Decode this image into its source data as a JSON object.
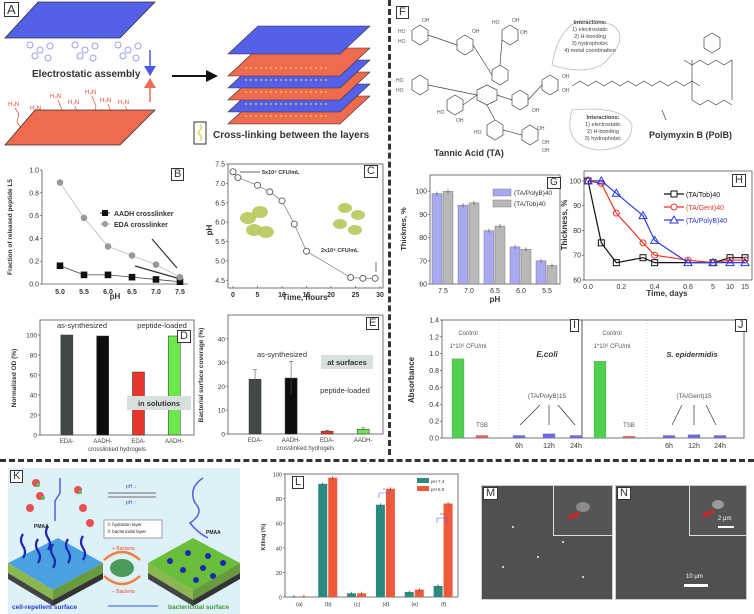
{
  "panels": {
    "A": {
      "label": "A",
      "electrostatic_text": "Electrostatic assembly",
      "crosslink_text": "Cross-linking between the layers",
      "amine_group": "H3N+"
    },
    "F": {
      "label": "F",
      "tannic_acid": "Tannic Acid (TA)",
      "polymyxin": "Polymyxin B (PolB)",
      "bubble1": {
        "title": "Interactions:",
        "items": [
          "1) electrostatic",
          "2) H-bonding",
          "3) hydrophobic",
          "4) metal coordination"
        ]
      },
      "bubble2": {
        "title": "Interactions:",
        "items": [
          "1) electrostatic",
          "2) H-bonding",
          "3) hydrophobic"
        ]
      }
    },
    "K": {
      "label": "K",
      "pmaa_left": "PMAA",
      "pmaa_right": "PMAA",
      "ph_down": "pH ↓",
      "ph_up": "pH ↑",
      "legend": [
        "① hydration layer",
        "② bactericidal layer"
      ],
      "plus_bacteria": "+ Bacteria",
      "minus_bacteria": "− Bacteria",
      "left_caption": "cell-repellent surface",
      "right_caption": "bactericidal surface"
    },
    "M": {
      "label": "M"
    },
    "N": {
      "label": "N",
      "scale_main": "10 μm",
      "scale_inset": "2 μm"
    }
  },
  "chart_data": [
    {
      "id": "B",
      "type": "line",
      "label": "B",
      "xlabel": "pH",
      "ylabel": "Fraction of released peptide L5",
      "x": [
        5.0,
        5.5,
        6.0,
        6.5,
        7.0,
        7.5
      ],
      "xticks": [
        "5.0",
        "5.5",
        "6.0",
        "6.5",
        "7.0",
        "7.5"
      ],
      "yticks": [
        "0.0",
        "0.2",
        "0.4",
        "0.6",
        "0.8",
        "1.0"
      ],
      "ylim": [
        0,
        1.0
      ],
      "series": [
        {
          "name": "AADH crosslinker",
          "color": "#111111",
          "marker": "square",
          "values": [
            0.16,
            0.08,
            0.08,
            0.06,
            0.04,
            0.02
          ]
        },
        {
          "name": "EDA crosslinker",
          "color": "#999999",
          "marker": "circle",
          "values": [
            0.89,
            0.58,
            0.33,
            0.25,
            0.17,
            0.06
          ]
        }
      ],
      "legend": "center-right"
    },
    {
      "id": "C",
      "type": "line",
      "label": "C",
      "xlabel": "Time, hours",
      "ylabel": "pH",
      "x": [
        0,
        1,
        5,
        7.5,
        10,
        12.5,
        15,
        24,
        26.5,
        29
      ],
      "values": [
        7.3,
        7.15,
        6.95,
        6.78,
        6.55,
        5.95,
        5.25,
        4.57,
        4.55,
        4.55
      ],
      "xticks": [
        "0",
        "5",
        "10",
        "15",
        "20",
        "25",
        "30"
      ],
      "yticks": [
        "4.5",
        "5.0",
        "5.5",
        "6.0",
        "6.5",
        "7.0",
        "7.5"
      ],
      "xlim": [
        0,
        30
      ],
      "ylim": [
        4.3,
        7.5
      ],
      "annotations": [
        "5x10⁸ CFU/mL",
        "2x10⁹ CFU/mL"
      ]
    },
    {
      "id": "D",
      "type": "bar",
      "label": "D",
      "xlabel": "crosslinked hydrogels",
      "ylabel": "Normalized OD (%)",
      "categories": [
        "EDA-",
        "AADH-",
        "EDA-",
        "AADH-"
      ],
      "values": [
        100,
        99,
        63,
        99
      ],
      "colors": [
        "#3f4a48",
        "#0d0d0d",
        "#e8352b",
        "#6de84a"
      ],
      "yticks": [
        "0",
        "20",
        "40",
        "60",
        "80",
        "100"
      ],
      "ylim": [
        0,
        115
      ],
      "annotations": [
        "as-synthesized",
        "peptide-loaded",
        "in solutions"
      ]
    },
    {
      "id": "E",
      "type": "bar",
      "label": "E",
      "xlabel": "crosslinked hydrogels",
      "ylabel": "Bacterial surface coverage (%)",
      "categories": [
        "EDA-",
        "AADH-",
        "EDA-",
        "AADH-"
      ],
      "values": [
        23,
        23.5,
        1.2,
        2
      ],
      "errors": [
        4,
        7,
        0.4,
        0.6
      ],
      "colors": [
        "#3f4a48",
        "#0d0d0d",
        "#e8352b",
        "#6de84a"
      ],
      "yticks": [
        "0",
        "10",
        "20",
        "30",
        "40"
      ],
      "ylim": [
        0,
        50
      ],
      "annotations": [
        "as-synthesized",
        "peptide-loaded",
        "at surfaces"
      ]
    },
    {
      "id": "G",
      "type": "bar",
      "label": "G",
      "xlabel": "pH",
      "ylabel": "Thicknes, %",
      "categories": [
        "7.5",
        "7.0",
        "6.5",
        "6.0",
        "5.5"
      ],
      "series": [
        {
          "name": "(TA/PolyB)40",
          "color": "#a9a9f0",
          "values": [
            99,
            94,
            83,
            76,
            70
          ]
        },
        {
          "name": "(TA/Tob)40",
          "color": "#b8b8b8",
          "values": [
            100,
            95,
            85,
            75,
            68
          ]
        }
      ],
      "yticks": [
        "60",
        "70",
        "80",
        "90",
        "100"
      ],
      "ylim": [
        60,
        107
      ],
      "legend": "top-right"
    },
    {
      "id": "H",
      "type": "line",
      "label": "H",
      "xlabel": "Time, days",
      "ylabel": "Thickness, %",
      "xticks": [
        "0.0",
        "0.2",
        "0.4",
        "0.6",
        "5",
        "10",
        "15"
      ],
      "yticks": [
        "60",
        "70",
        "80",
        "90",
        "100"
      ],
      "ylim": [
        60,
        104
      ],
      "series": [
        {
          "name": "(TA/Tob)40",
          "color": "#111111",
          "marker": "square",
          "x": [
            0,
            0.08,
            0.17,
            0.33,
            0.4,
            5,
            10,
            15
          ],
          "values": [
            100,
            75,
            67,
            69,
            67,
            67,
            69,
            69
          ]
        },
        {
          "name": "(TA/Gent)40",
          "color": "#e8352b",
          "marker": "circle",
          "x": [
            0,
            0.08,
            0.17,
            0.33,
            0.4,
            0.6,
            5,
            10,
            15
          ],
          "values": [
            100,
            99,
            87,
            75,
            70,
            68,
            67,
            68,
            68
          ]
        },
        {
          "name": "(TA/PolyB)40",
          "color": "#2a3ae0",
          "marker": "triangle",
          "x": [
            0,
            0.08,
            0.17,
            0.33,
            0.4,
            0.6,
            5,
            10,
            15
          ],
          "values": [
            100,
            100,
            95,
            86,
            76,
            67,
            67,
            67,
            67
          ]
        }
      ],
      "legend": "top-right"
    },
    {
      "id": "I",
      "type": "bar",
      "label": "I",
      "ylabel": "Absorbance",
      "categories": [
        "Control",
        "TSB",
        "6h",
        "12h",
        "24h"
      ],
      "values": [
        0.94,
        0.03,
        0.03,
        0.05,
        0.03
      ],
      "colors": [
        "#4fd04f",
        "#e86060",
        "#6a6ae8",
        "#6a6ae8",
        "#6a6ae8"
      ],
      "yticks": [
        "0.0",
        "0.2",
        "0.4",
        "0.6",
        "0.8",
        "1.0",
        "1.2",
        "1.4"
      ],
      "ylim": [
        0,
        1.4
      ],
      "annotations": [
        "Control",
        "1*10⁶ CFU/ml",
        "TSB",
        "E.coli",
        "(TA/PolyB)15"
      ]
    },
    {
      "id": "J",
      "type": "bar",
      "label": "J",
      "categories": [
        "Control",
        "TSB",
        "6h",
        "12h",
        "24h"
      ],
      "values": [
        0.91,
        0.02,
        0.03,
        0.04,
        0.03
      ],
      "colors": [
        "#4fd04f",
        "#e86060",
        "#6a6ae8",
        "#6a6ae8",
        "#6a6ae8"
      ],
      "ylim": [
        0,
        1.4
      ],
      "annotations": [
        "Control",
        "1*10⁶ CFU/ml",
        "TSB",
        "S. epidermidis",
        "(TA/Gent)15"
      ]
    },
    {
      "id": "L",
      "type": "bar",
      "label": "L",
      "ylabel": "Killing (%)",
      "categories": [
        "(a)",
        "(b)",
        "(c)",
        "(d)",
        "(e)",
        "(f)"
      ],
      "series": [
        {
          "name": "pH 7.4",
          "color": "#2a8a80",
          "values": [
            0.3,
            92,
            3,
            75,
            4,
            9
          ]
        },
        {
          "name": "pH 5.0",
          "color": "#f0583a",
          "values": [
            0.5,
            97,
            3,
            88,
            6,
            76
          ]
        }
      ],
      "yticks": [
        "0",
        "20",
        "40",
        "60",
        "80",
        "100"
      ],
      "ylim": [
        0,
        100
      ],
      "significance": [
        "*",
        "**"
      ],
      "legend": "top-right"
    }
  ]
}
